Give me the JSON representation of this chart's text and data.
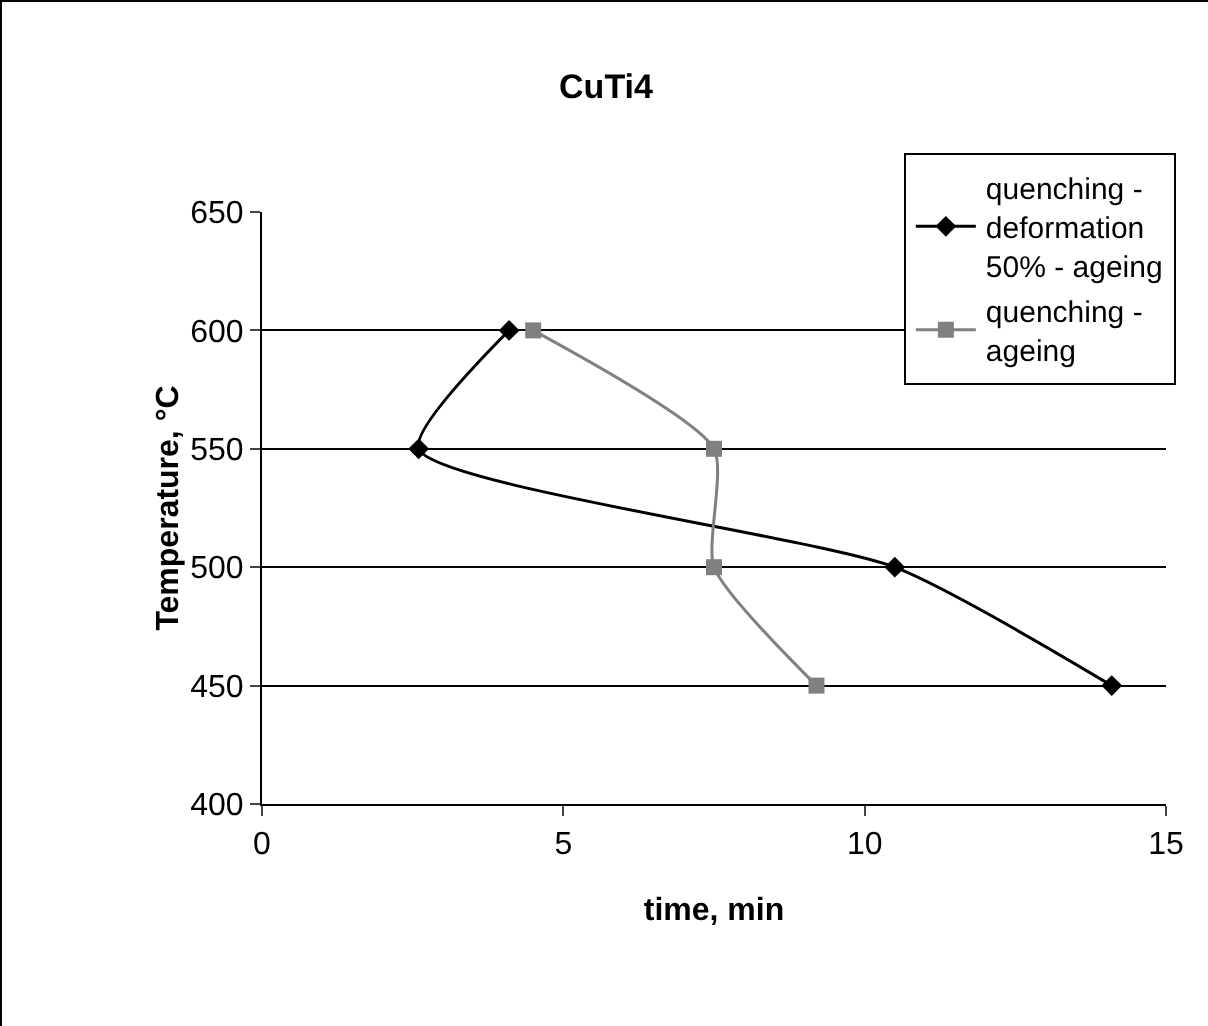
{
  "chart_data": {
    "type": "line",
    "title": "CuTi4",
    "xlabel": "time, min",
    "ylabel": "Temperature, °C",
    "series": [
      {
        "name": "quenching - deformation 50% - ageing",
        "color": "#000000",
        "marker": "diamond",
        "x": [
          14.1,
          10.5,
          2.6,
          4.1
        ],
        "values": [
          450,
          500,
          550,
          600
        ]
      },
      {
        "name": "quenching - ageing",
        "color": "#808080",
        "marker": "square",
        "x": [
          9.2,
          7.5,
          7.5,
          4.5
        ],
        "values": [
          450,
          500,
          550,
          600
        ]
      }
    ],
    "xlim": [
      0,
      15
    ],
    "xticks": [
      0,
      5,
      10,
      15
    ],
    "ylim": [
      400,
      650
    ],
    "yticks": [
      400,
      450,
      500,
      550,
      600,
      650
    ],
    "grid": "y",
    "legend": "top right",
    "line_style": "solid"
  }
}
